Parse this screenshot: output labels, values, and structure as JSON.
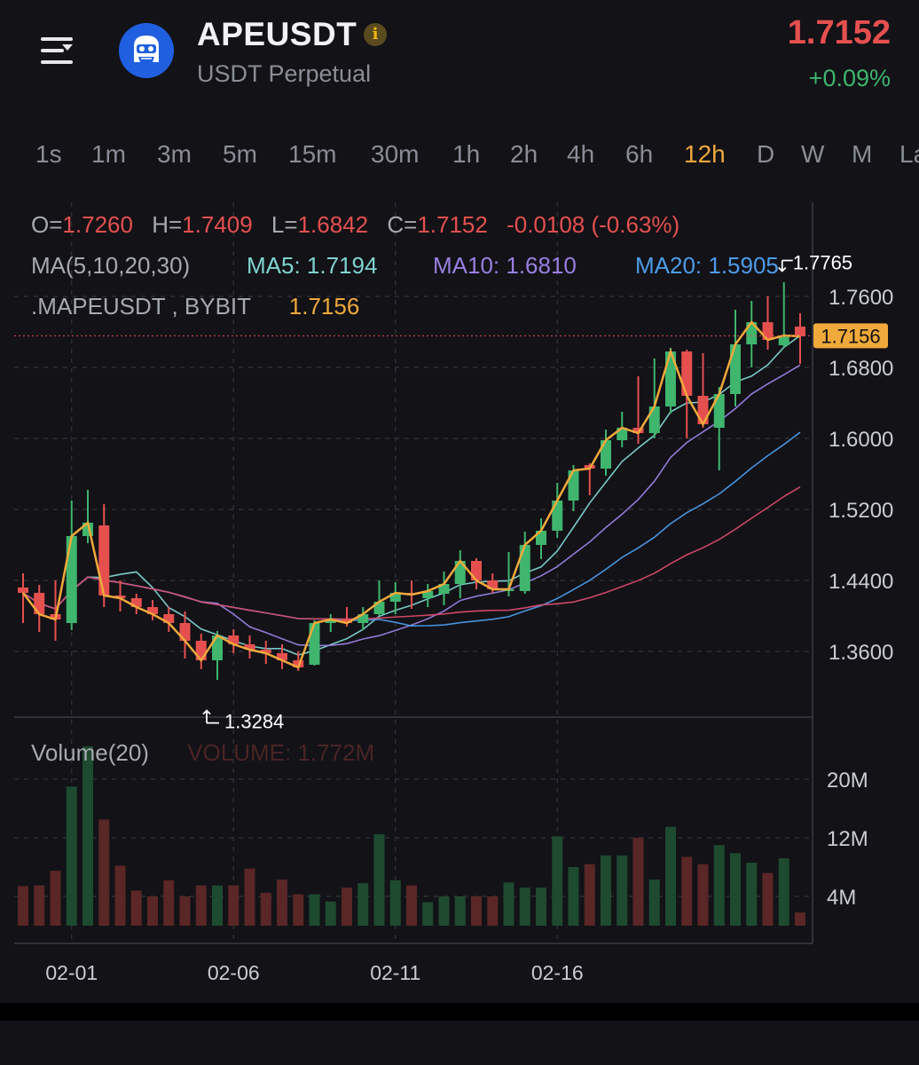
{
  "header": {
    "symbol": "APEUSDT",
    "subtitle": "USDT Perpetual",
    "last_price": "1.7152",
    "change": "+0.09%",
    "info_icon": "i",
    "menu_icon": "menu-icon",
    "logo_icon": "ape-logo-icon"
  },
  "timeframes": [
    "1s",
    "1m",
    "3m",
    "5m",
    "15m",
    "30m",
    "1h",
    "2h",
    "4h",
    "6h",
    "12h",
    "D",
    "W",
    "M",
    "La"
  ],
  "active_timeframe": "12h",
  "overlay": {
    "o_label": "O=",
    "o": "1.7260",
    "h_label": "H=",
    "h": "1.7409",
    "l_label": "L=",
    "l": "1.6842",
    "c_label": "C=",
    "c": "1.7152",
    "chg": "-0.0108 (-0.63%)",
    "ma_label": "MA(5,10,20,30)",
    "ma5": "MA5: 1.7194",
    "ma10": "MA10: 1.6810",
    "ma20": "MA20: 1.5905",
    "index_label": ".MAPEUSDT , BYBIT",
    "index_value": "1.7156",
    "max_label": "1.7765",
    "min_label": "1.3284",
    "price_tag": "1.7156"
  },
  "volume": {
    "label": "Volume(20)",
    "value_label": "VOLUME: 1.772M"
  },
  "colors": {
    "up": "#3fb56e",
    "down": "#e5504f",
    "ma5": "#7fd3d0",
    "ma10": "#9a7fe0",
    "ma20": "#4d9be8",
    "ma30": "#d84b6a",
    "index_line": "#f0a93b",
    "accent": "#f0a93b"
  },
  "chart_data": {
    "type": "candlestick",
    "interval": "12h",
    "y_ticks": [
      "1.7600",
      "1.6800",
      "1.6000",
      "1.5200",
      "1.4400",
      "1.3600"
    ],
    "ylim": [
      1.28,
      1.8
    ],
    "volume_ticks": [
      "20M",
      "12M",
      "4M"
    ],
    "volume_unit": "M",
    "x_ticks": [
      "02-01",
      "02-06",
      "02-11",
      "02-16"
    ],
    "x_tick_index": [
      3,
      13,
      23,
      33
    ],
    "candles": [
      {
        "o": 1.432,
        "h": 1.448,
        "l": 1.392,
        "c": 1.426,
        "v": 5.4
      },
      {
        "o": 1.426,
        "h": 1.435,
        "l": 1.382,
        "c": 1.402,
        "v": 5.5
      },
      {
        "o": 1.402,
        "h": 1.44,
        "l": 1.372,
        "c": 1.396,
        "v": 7.5
      },
      {
        "o": 1.392,
        "h": 1.53,
        "l": 1.384,
        "c": 1.49,
        "v": 19.0
      },
      {
        "o": 1.49,
        "h": 1.542,
        "l": 1.482,
        "c": 1.505,
        "v": 24.5
      },
      {
        "o": 1.502,
        "h": 1.526,
        "l": 1.41,
        "c": 1.423,
        "v": 14.5
      },
      {
        "o": 1.423,
        "h": 1.44,
        "l": 1.405,
        "c": 1.42,
        "v": 8.2
      },
      {
        "o": 1.42,
        "h": 1.425,
        "l": 1.402,
        "c": 1.41,
        "v": 4.8
      },
      {
        "o": 1.41,
        "h": 1.418,
        "l": 1.395,
        "c": 1.402,
        "v": 4.0
      },
      {
        "o": 1.402,
        "h": 1.41,
        "l": 1.382,
        "c": 1.392,
        "v": 6.2
      },
      {
        "o": 1.392,
        "h": 1.405,
        "l": 1.352,
        "c": 1.372,
        "v": 4.0
      },
      {
        "o": 1.372,
        "h": 1.38,
        "l": 1.34,
        "c": 1.35,
        "v": 5.5
      },
      {
        "o": 1.35,
        "h": 1.383,
        "l": 1.328,
        "c": 1.378,
        "v": 5.5
      },
      {
        "o": 1.378,
        "h": 1.385,
        "l": 1.358,
        "c": 1.368,
        "v": 5.5
      },
      {
        "o": 1.368,
        "h": 1.378,
        "l": 1.352,
        "c": 1.362,
        "v": 7.8
      },
      {
        "o": 1.362,
        "h": 1.372,
        "l": 1.346,
        "c": 1.358,
        "v": 4.5
      },
      {
        "o": 1.358,
        "h": 1.368,
        "l": 1.34,
        "c": 1.35,
        "v": 6.3
      },
      {
        "o": 1.35,
        "h": 1.36,
        "l": 1.338,
        "c": 1.342,
        "v": 4.3
      },
      {
        "o": 1.345,
        "h": 1.395,
        "l": 1.344,
        "c": 1.392,
        "v": 4.3
      },
      {
        "o": 1.392,
        "h": 1.402,
        "l": 1.382,
        "c": 1.396,
        "v": 3.3
      },
      {
        "o": 1.396,
        "h": 1.41,
        "l": 1.388,
        "c": 1.392,
        "v": 5.2
      },
      {
        "o": 1.392,
        "h": 1.41,
        "l": 1.384,
        "c": 1.402,
        "v": 5.8
      },
      {
        "o": 1.402,
        "h": 1.44,
        "l": 1.4,
        "c": 1.416,
        "v": 12.5
      },
      {
        "o": 1.416,
        "h": 1.438,
        "l": 1.402,
        "c": 1.426,
        "v": 6.2
      },
      {
        "o": 1.426,
        "h": 1.44,
        "l": 1.408,
        "c": 1.424,
        "v": 5.5
      },
      {
        "o": 1.42,
        "h": 1.436,
        "l": 1.41,
        "c": 1.428,
        "v": 3.2
      },
      {
        "o": 1.425,
        "h": 1.45,
        "l": 1.412,
        "c": 1.436,
        "v": 4.0
      },
      {
        "o": 1.436,
        "h": 1.474,
        "l": 1.42,
        "c": 1.462,
        "v": 4.0
      },
      {
        "o": 1.462,
        "h": 1.465,
        "l": 1.43,
        "c": 1.44,
        "v": 4.0
      },
      {
        "o": 1.44,
        "h": 1.448,
        "l": 1.426,
        "c": 1.43,
        "v": 4.0
      },
      {
        "o": 1.43,
        "h": 1.472,
        "l": 1.422,
        "c": 1.43,
        "v": 5.9
      },
      {
        "o": 1.428,
        "h": 1.495,
        "l": 1.425,
        "c": 1.48,
        "v": 5.2
      },
      {
        "o": 1.48,
        "h": 1.51,
        "l": 1.464,
        "c": 1.496,
        "v": 5.2
      },
      {
        "o": 1.496,
        "h": 1.55,
        "l": 1.488,
        "c": 1.53,
        "v": 12.2
      },
      {
        "o": 1.53,
        "h": 1.57,
        "l": 1.518,
        "c": 1.564,
        "v": 8.0
      },
      {
        "o": 1.57,
        "h": 1.572,
        "l": 1.536,
        "c": 1.566,
        "v": 8.4
      },
      {
        "o": 1.566,
        "h": 1.61,
        "l": 1.558,
        "c": 1.598,
        "v": 9.6
      },
      {
        "o": 1.598,
        "h": 1.63,
        "l": 1.59,
        "c": 1.612,
        "v": 9.6
      },
      {
        "o": 1.612,
        "h": 1.67,
        "l": 1.594,
        "c": 1.606,
        "v": 12.0
      },
      {
        "o": 1.606,
        "h": 1.69,
        "l": 1.6,
        "c": 1.636,
        "v": 6.3
      },
      {
        "o": 1.636,
        "h": 1.702,
        "l": 1.628,
        "c": 1.698,
        "v": 13.5
      },
      {
        "o": 1.698,
        "h": 1.7,
        "l": 1.6,
        "c": 1.648,
        "v": 9.4
      },
      {
        "o": 1.648,
        "h": 1.696,
        "l": 1.612,
        "c": 1.616,
        "v": 8.4
      },
      {
        "o": 1.612,
        "h": 1.658,
        "l": 1.564,
        "c": 1.65,
        "v": 11.0
      },
      {
        "o": 1.65,
        "h": 1.745,
        "l": 1.636,
        "c": 1.706,
        "v": 9.9
      },
      {
        "o": 1.706,
        "h": 1.755,
        "l": 1.68,
        "c": 1.731,
        "v": 8.6
      },
      {
        "o": 1.731,
        "h": 1.76,
        "l": 1.7,
        "c": 1.711,
        "v": 7.2
      },
      {
        "o": 1.705,
        "h": 1.776,
        "l": 1.702,
        "c": 1.716,
        "v": 9.2
      },
      {
        "o": 1.726,
        "h": 1.741,
        "l": 1.684,
        "c": 1.715,
        "v": 1.8
      }
    ],
    "index_line": {
      "name": ".MAPEUSDT",
      "current": 1.7156
    },
    "ma_periods": [
      5,
      10,
      20,
      30
    ],
    "max": 1.7765,
    "min": 1.3284
  }
}
